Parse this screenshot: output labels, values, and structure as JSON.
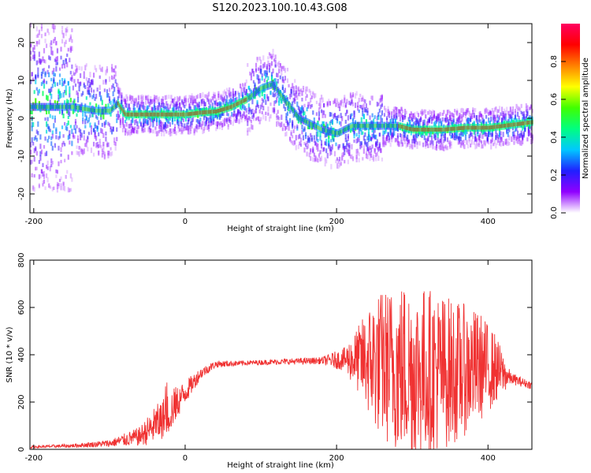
{
  "title": "S120.2023.100.10.43.G08",
  "chart_data": [
    {
      "type": "heatmap",
      "xlabel": "Height of straight line (km)",
      "ylabel": "Frequency (Hz)",
      "xlim": [
        -205,
        458
      ],
      "ylim": [
        -25,
        25
      ],
      "x_ticks": [
        -200,
        0,
        200,
        400
      ],
      "y_ticks": [
        20,
        10,
        0,
        -10,
        -20
      ],
      "colorbar": {
        "label": "Normalized spectral amplitude",
        "range": [
          0,
          1
        ],
        "ticks": [
          0.0,
          0.2,
          0.4,
          0.6,
          0.8
        ],
        "colors": [
          "#ffffff",
          "#9000ff",
          "#2020ff",
          "#00c8ff",
          "#00ff80",
          "#40ff00",
          "#ffff00",
          "#ff8000",
          "#ff0000",
          "#ff0060"
        ]
      },
      "ridge": {
        "x": [
          -200,
          -150,
          -120,
          -100,
          -90,
          -80,
          -60,
          -20,
          0,
          20,
          40,
          60,
          80,
          100,
          115,
          130,
          150,
          180,
          200,
          220,
          250,
          280,
          300,
          340,
          370,
          400,
          420,
          440,
          458
        ],
        "freq": [
          3,
          3,
          2,
          2,
          4,
          1,
          1,
          1,
          1,
          1.5,
          1.8,
          3,
          5,
          8,
          9,
          5,
          0,
          -3,
          -4,
          -2,
          -2,
          -2,
          -3,
          -3,
          -2.5,
          -2.5,
          -2,
          -1.5,
          -1
        ]
      }
    },
    {
      "type": "line",
      "xlabel": "Height of straight line (km)",
      "ylabel": "SNR (10 * v/v)",
      "xlim": [
        -205,
        458
      ],
      "ylim": [
        0,
        800
      ],
      "x_ticks": [
        -200,
        0,
        200,
        400
      ],
      "y_ticks": [
        0,
        200,
        400,
        600,
        800
      ],
      "color": "#f03232",
      "envelope": {
        "x": [
          -205,
          -150,
          -100,
          -60,
          -40,
          -20,
          0,
          20,
          40,
          80,
          120,
          180,
          210,
          230,
          250,
          270,
          290,
          310,
          330,
          360,
          390,
          410,
          430,
          458
        ],
        "mean": [
          10,
          15,
          25,
          55,
          100,
          160,
          240,
          320,
          360,
          365,
          370,
          375,
          380,
          380,
          370,
          350,
          340,
          330,
          330,
          330,
          350,
          340,
          300,
          270
        ],
        "amplitude": [
          5,
          8,
          15,
          40,
          80,
          90,
          50,
          25,
          15,
          10,
          12,
          15,
          50,
          150,
          290,
          340,
          380,
          370,
          350,
          300,
          230,
          150,
          25,
          15
        ]
      }
    }
  ]
}
